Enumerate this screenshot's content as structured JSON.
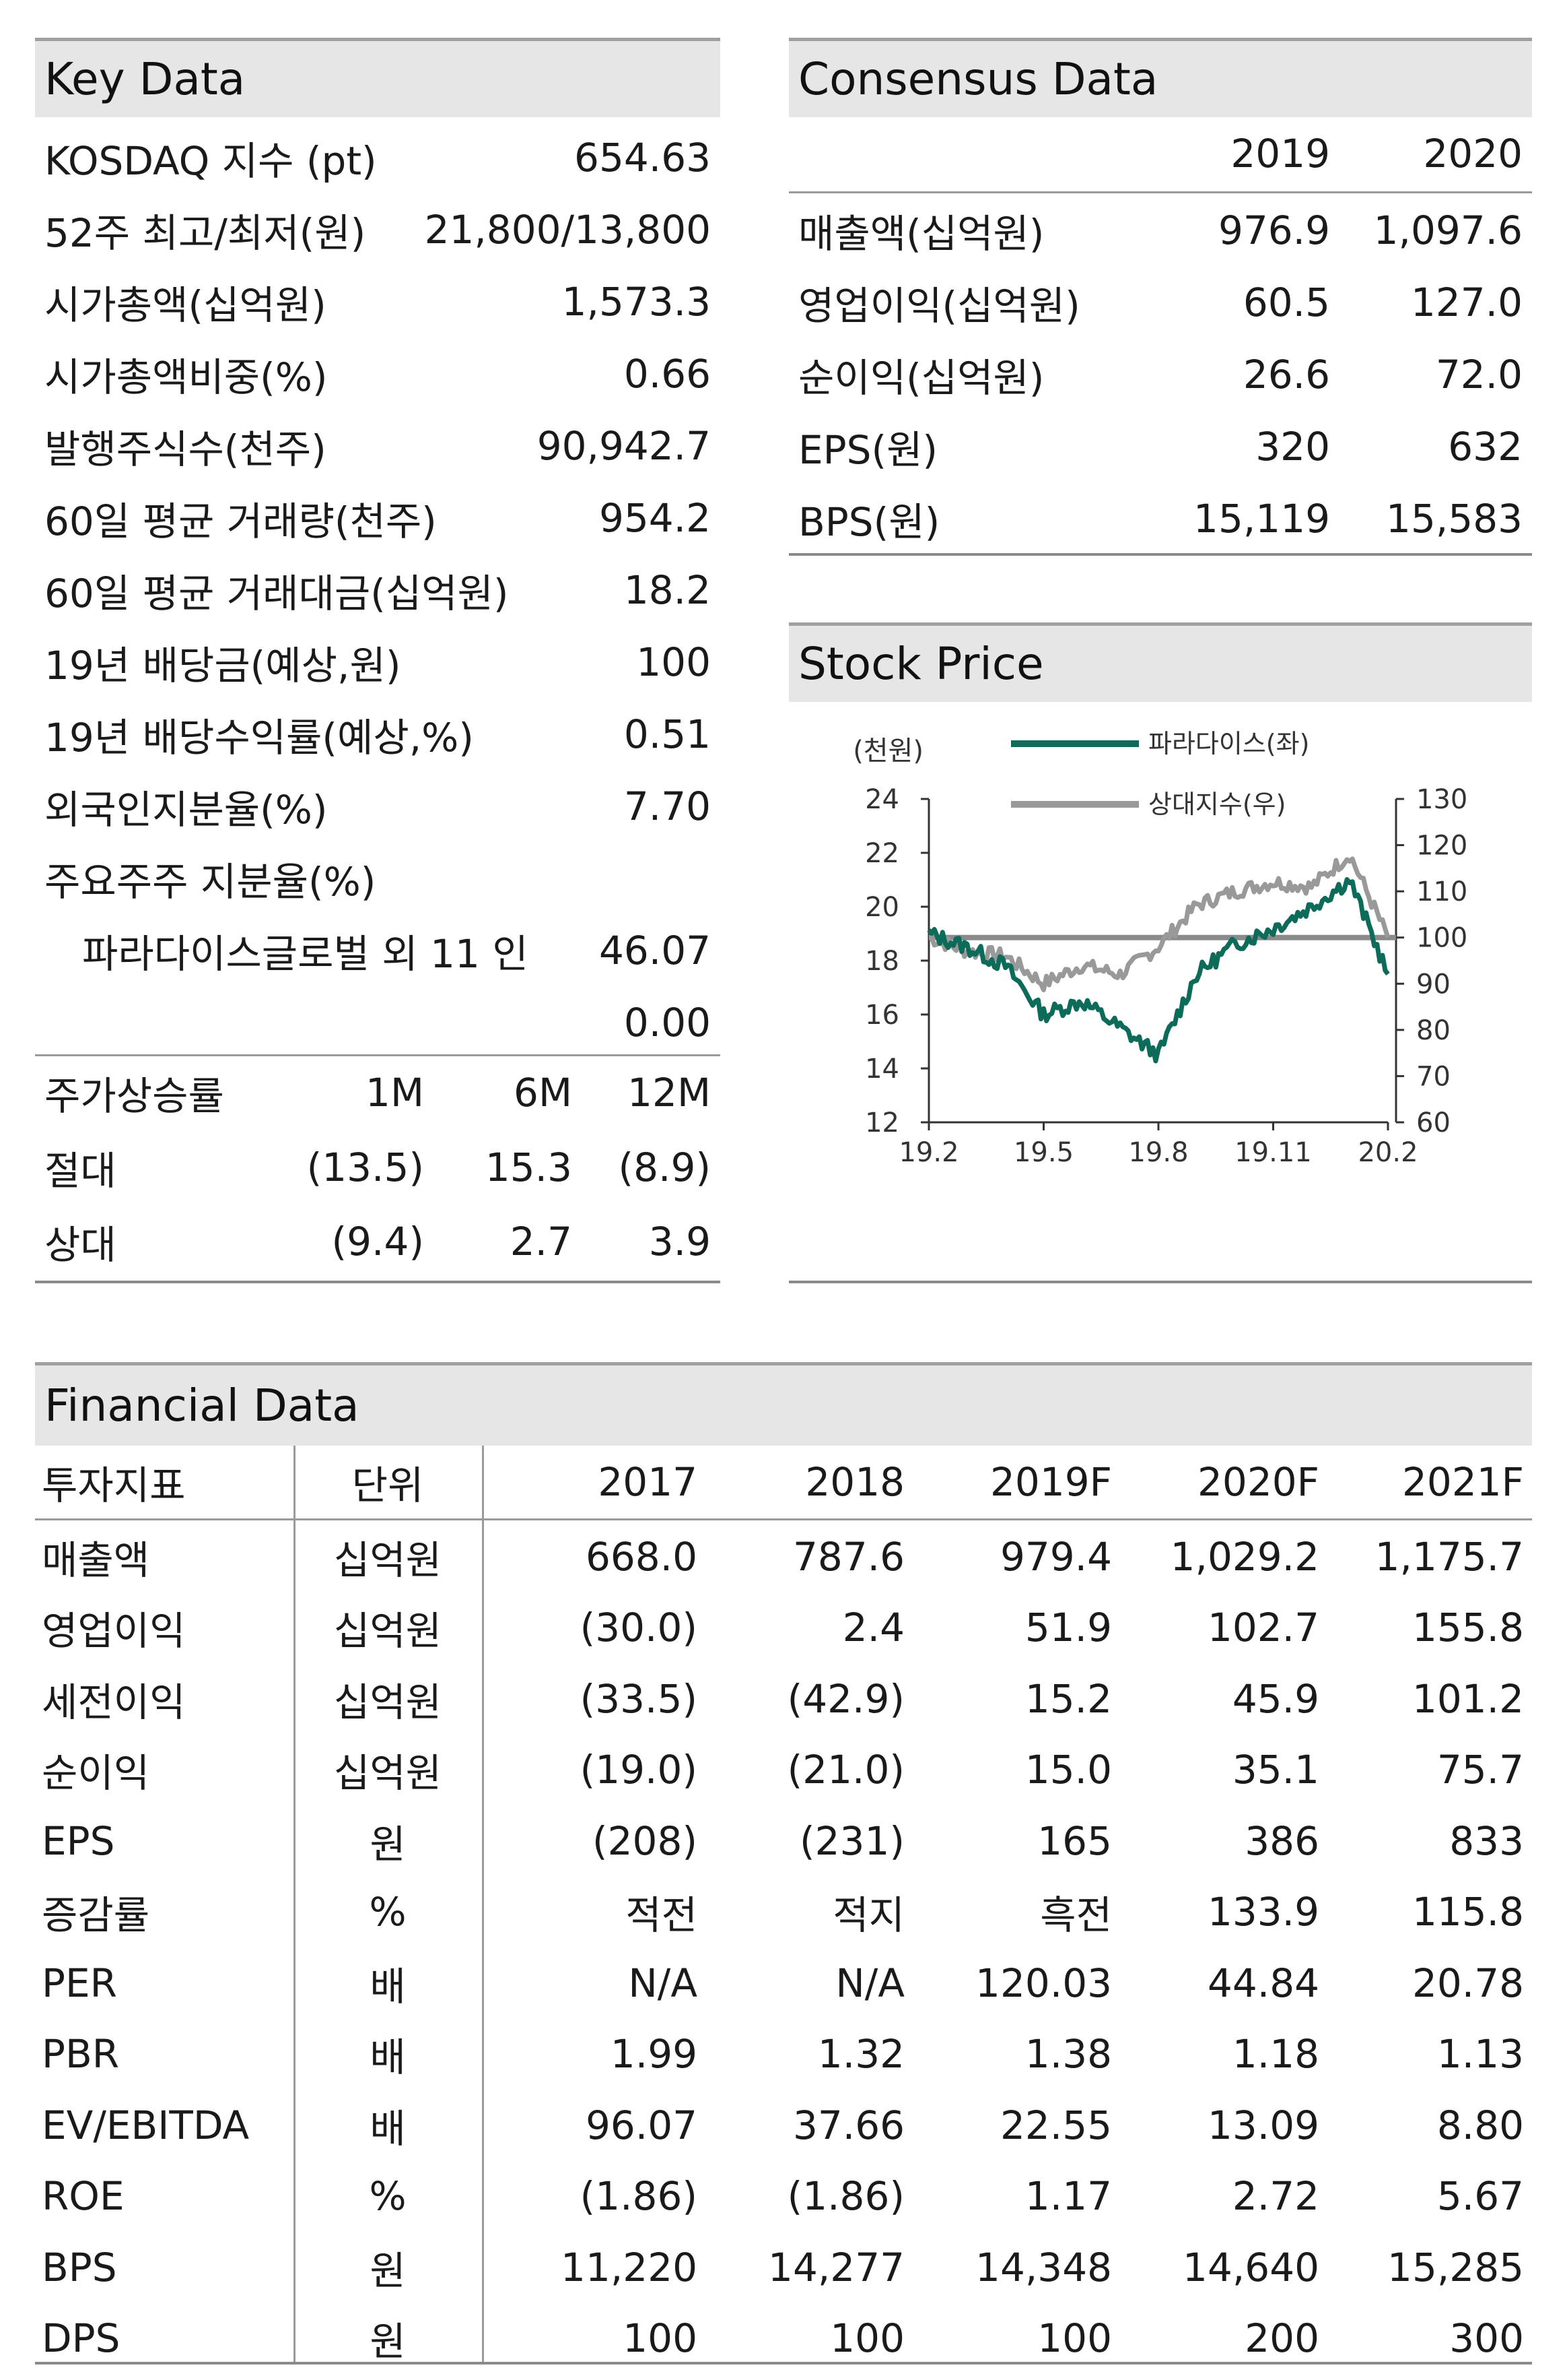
{
  "key_data": {
    "title": "Key Data",
    "rows": [
      {
        "label": "KOSDAQ 지수 (pt)",
        "value": "654.63"
      },
      {
        "label": "52주 최고/최저(원)",
        "value": "21,800/13,800"
      },
      {
        "label": "시가총액(십억원)",
        "value": "1,573.3"
      },
      {
        "label": "시가총액비중(%)",
        "value": "0.66"
      },
      {
        "label": "발행주식수(천주)",
        "value": "90,942.7"
      },
      {
        "label": "60일 평균 거래량(천주)",
        "value": "954.2"
      },
      {
        "label": "60일 평균 거래대금(십억원)",
        "value": "18.2"
      },
      {
        "label": "19년 배당금(예상,원)",
        "value": "100"
      },
      {
        "label": "19년 배당수익률(예상,%)",
        "value": "0.51"
      },
      {
        "label": "외국인지분율(%)",
        "value": "7.70"
      },
      {
        "label": "주요주주 지분율(%)",
        "value": ""
      },
      {
        "label": "파라다이스글로벌 외 11 인",
        "value": "46.07"
      },
      {
        "label": "",
        "value": "0.00"
      }
    ],
    "returns": {
      "header": [
        "주가상승률",
        "1M",
        "6M",
        "12M"
      ],
      "rows": [
        [
          "절대",
          "(13.5)",
          "15.3",
          "(8.9)"
        ],
        [
          "상대",
          "(9.4)",
          "2.7",
          "3.9"
        ]
      ]
    }
  },
  "consensus": {
    "title": "Consensus Data",
    "years": [
      "2019",
      "2020"
    ],
    "rows": [
      {
        "label": "매출액(십억원)",
        "v1": "976.9",
        "v2": "1,097.6"
      },
      {
        "label": "영업이익(십억원)",
        "v1": "60.5",
        "v2": "127.0"
      },
      {
        "label": "순이익(십억원)",
        "v1": "26.6",
        "v2": "72.0"
      },
      {
        "label": "EPS(원)",
        "v1": "320",
        "v2": "632"
      },
      {
        "label": "BPS(원)",
        "v1": "15,119",
        "v2": "15,583"
      }
    ]
  },
  "stock_price": {
    "title": "Stock Price",
    "legend": [
      "파라다이스(좌)",
      "상대지수(우)"
    ],
    "left_unit": "(천원)",
    "left_ticks": [
      "24",
      "22",
      "20",
      "18",
      "16",
      "14",
      "12"
    ],
    "right_ticks": [
      "130",
      "120",
      "110",
      "100",
      "90",
      "80",
      "70",
      "60"
    ],
    "x_ticks": [
      "19.2",
      "19.5",
      "19.8",
      "19.11",
      "20.2"
    ]
  },
  "chart_data": {
    "type": "line",
    "x": [
      "19.2",
      "19.3",
      "19.4",
      "19.5",
      "19.6",
      "19.7",
      "19.8",
      "19.9",
      "19.10",
      "19.11",
      "19.12",
      "20.1",
      "20.2"
    ],
    "series": [
      {
        "name": "파라다이스(좌)",
        "axis": "left",
        "color": "#0d6b5a",
        "values": [
          19.0,
          18.5,
          17.8,
          16.0,
          16.5,
          15.5,
          14.5,
          17.5,
          18.6,
          19.2,
          20.0,
          21.0,
          17.5
        ]
      },
      {
        "name": "상대지수(우)",
        "axis": "right",
        "color": "#999999",
        "values": [
          100,
          97,
          96,
          90,
          94,
          92,
          98,
          107,
          110,
          112,
          111,
          118,
          100
        ]
      }
    ],
    "left_ylim": [
      12,
      24
    ],
    "right_ylim": [
      60,
      130
    ],
    "reference_line_right": 100,
    "legend_position": "top"
  },
  "financial": {
    "title": "Financial Data",
    "header": [
      "투자지표",
      "단위",
      "2017",
      "2018",
      "2019F",
      "2020F",
      "2021F"
    ],
    "rows": [
      [
        "매출액",
        "십억원",
        "668.0",
        "787.6",
        "979.4",
        "1,029.2",
        "1,175.7"
      ],
      [
        "영업이익",
        "십억원",
        "(30.0)",
        "2.4",
        "51.9",
        "102.7",
        "155.8"
      ],
      [
        "세전이익",
        "십억원",
        "(33.5)",
        "(42.9)",
        "15.2",
        "45.9",
        "101.2"
      ],
      [
        "순이익",
        "십억원",
        "(19.0)",
        "(21.0)",
        "15.0",
        "35.1",
        "75.7"
      ],
      [
        "EPS",
        "원",
        "(208)",
        "(231)",
        "165",
        "386",
        "833"
      ],
      [
        "증감률",
        "%",
        "적전",
        "적지",
        "흑전",
        "133.9",
        "115.8"
      ],
      [
        "PER",
        "배",
        "N/A",
        "N/A",
        "120.03",
        "44.84",
        "20.78"
      ],
      [
        "PBR",
        "배",
        "1.99",
        "1.32",
        "1.38",
        "1.18",
        "1.13"
      ],
      [
        "EV/EBITDA",
        "배",
        "96.07",
        "37.66",
        "22.55",
        "13.09",
        "8.80"
      ],
      [
        "ROE",
        "%",
        "(1.86)",
        "(1.86)",
        "1.17",
        "2.72",
        "5.67"
      ],
      [
        "BPS",
        "원",
        "11,220",
        "14,277",
        "14,348",
        "14,640",
        "15,285"
      ],
      [
        "DPS",
        "원",
        "100",
        "100",
        "100",
        "200",
        "300"
      ]
    ]
  }
}
